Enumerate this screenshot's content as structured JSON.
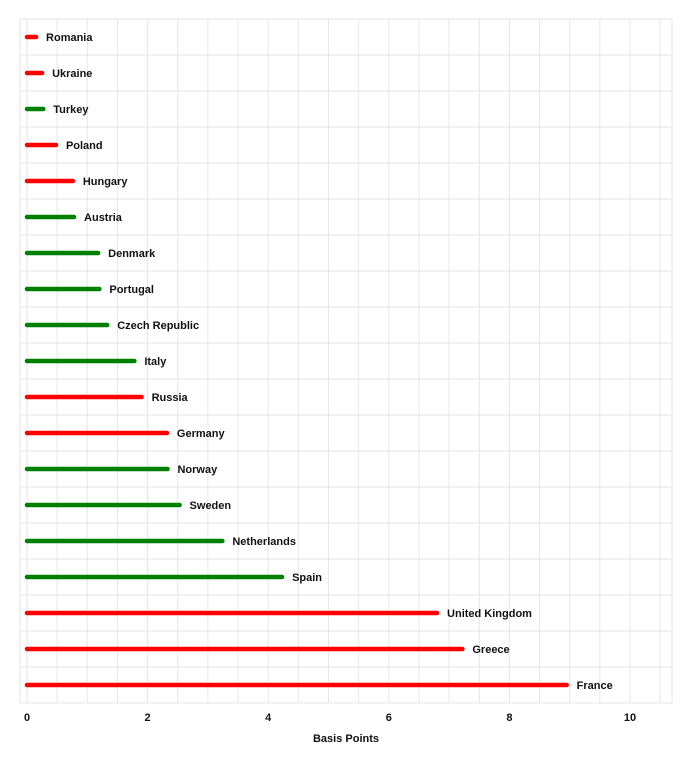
{
  "chart_data": {
    "type": "bar",
    "orientation": "horizontal",
    "xlabel": "Basis Points",
    "xlim": [
      0,
      10.7
    ],
    "xticks": [
      0,
      2,
      4,
      6,
      8,
      10
    ],
    "grid": true,
    "colors": {
      "positive": "#008000",
      "negative": "#ff0000"
    },
    "categories": [
      "Romania",
      "Ukraine",
      "Turkey",
      "Poland",
      "Hungary",
      "Austria",
      "Denmark",
      "Portugal",
      "Czech Republic",
      "Italy",
      "Russia",
      "Germany",
      "Norway",
      "Sweden",
      "Netherlands",
      "Spain",
      "United Kingdom",
      "Greece",
      "France"
    ],
    "values": [
      0.15,
      0.25,
      0.27,
      0.48,
      0.76,
      0.78,
      1.18,
      1.2,
      1.33,
      1.78,
      1.9,
      2.32,
      2.33,
      2.53,
      3.24,
      4.23,
      6.8,
      7.22,
      8.95
    ],
    "bar_colors": [
      "negative",
      "negative",
      "positive",
      "negative",
      "negative",
      "positive",
      "positive",
      "positive",
      "positive",
      "positive",
      "negative",
      "negative",
      "positive",
      "positive",
      "positive",
      "positive",
      "negative",
      "negative",
      "negative"
    ]
  }
}
